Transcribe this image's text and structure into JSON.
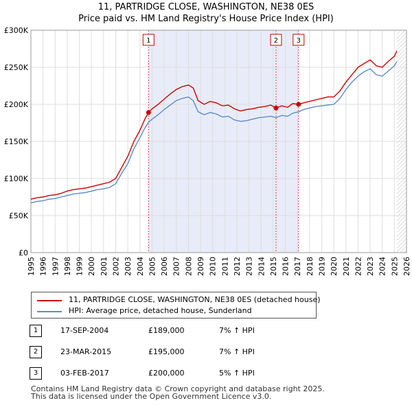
{
  "title_line1": "11, PARTRIDGE CLOSE, WASHINGTON, NE38 0ES",
  "title_line2": "Price paid vs. HM Land Registry's House Price Index (HPI)",
  "chart_data": {
    "type": "line",
    "title": "Price paid vs. HM Land Registry's House Price Index (HPI)",
    "xlim": [
      1995,
      2026
    ],
    "ylim": [
      0,
      300000
    ],
    "x_ticks": [
      "1995",
      "1996",
      "1997",
      "1998",
      "1999",
      "2000",
      "2001",
      "2002",
      "2003",
      "2004",
      "2005",
      "2006",
      "2007",
      "2008",
      "2009",
      "2010",
      "2011",
      "2012",
      "2013",
      "2014",
      "2015",
      "2016",
      "2017",
      "2018",
      "2019",
      "2020",
      "2021",
      "2022",
      "2023",
      "2024",
      "2025",
      "2026"
    ],
    "y_ticks": [
      {
        "value": 0,
        "label": "£0"
      },
      {
        "value": 50000,
        "label": "£50K"
      },
      {
        "value": 100000,
        "label": "£100K"
      },
      {
        "value": 150000,
        "label": "£150K"
      },
      {
        "value": 200000,
        "label": "£200K"
      },
      {
        "value": 250000,
        "label": "£250K"
      },
      {
        "value": 300000,
        "label": "£300K"
      }
    ],
    "grid": true,
    "shaded_period": [
      2004.71,
      2017.09
    ],
    "hatched_after": 2025.2,
    "series": [
      {
        "name": "11, PARTRIDGE CLOSE, WASHINGTON, NE38 0ES (detached house)",
        "color": "#cc0000",
        "points": [
          [
            1995.0,
            72000
          ],
          [
            1995.5,
            74000
          ],
          [
            1996.0,
            75000
          ],
          [
            1996.5,
            77000
          ],
          [
            1997.0,
            78000
          ],
          [
            1997.5,
            80000
          ],
          [
            1998.0,
            83000
          ],
          [
            1998.5,
            85000
          ],
          [
            1999.0,
            86000
          ],
          [
            1999.5,
            87000
          ],
          [
            2000.0,
            89000
          ],
          [
            2000.5,
            91000
          ],
          [
            2001.0,
            93000
          ],
          [
            2001.5,
            95000
          ],
          [
            2002.0,
            100000
          ],
          [
            2002.5,
            115000
          ],
          [
            2003.0,
            130000
          ],
          [
            2003.5,
            150000
          ],
          [
            2004.0,
            165000
          ],
          [
            2004.4,
            180000
          ],
          [
            2004.71,
            189000
          ],
          [
            2005.0,
            194000
          ],
          [
            2005.5,
            200000
          ],
          [
            2006.0,
            207000
          ],
          [
            2006.5,
            214000
          ],
          [
            2007.0,
            220000
          ],
          [
            2007.5,
            224000
          ],
          [
            2008.0,
            226000
          ],
          [
            2008.4,
            222000
          ],
          [
            2008.8,
            205000
          ],
          [
            2009.3,
            200000
          ],
          [
            2009.8,
            204000
          ],
          [
            2010.3,
            202000
          ],
          [
            2010.8,
            198000
          ],
          [
            2011.3,
            199000
          ],
          [
            2011.8,
            194000
          ],
          [
            2012.3,
            191000
          ],
          [
            2012.8,
            193000
          ],
          [
            2013.3,
            194000
          ],
          [
            2013.8,
            196000
          ],
          [
            2014.3,
            197000
          ],
          [
            2014.8,
            199000
          ],
          [
            2015.23,
            195000
          ],
          [
            2015.7,
            198000
          ],
          [
            2016.2,
            196000
          ],
          [
            2016.6,
            201000
          ],
          [
            2017.09,
            200000
          ],
          [
            2017.5,
            202000
          ],
          [
            2018.0,
            204000
          ],
          [
            2018.5,
            206000
          ],
          [
            2019.0,
            208000
          ],
          [
            2019.5,
            210000
          ],
          [
            2020.0,
            210000
          ],
          [
            2020.5,
            218000
          ],
          [
            2021.0,
            230000
          ],
          [
            2021.5,
            240000
          ],
          [
            2022.0,
            250000
          ],
          [
            2022.5,
            255000
          ],
          [
            2023.0,
            260000
          ],
          [
            2023.5,
            252000
          ],
          [
            2024.0,
            250000
          ],
          [
            2024.5,
            258000
          ],
          [
            2025.0,
            265000
          ],
          [
            2025.2,
            272000
          ]
        ]
      },
      {
        "name": "HPI: Average price, detached house, Sunderland",
        "color": "#5b8cc8",
        "points": [
          [
            1995.0,
            67000
          ],
          [
            1995.5,
            69000
          ],
          [
            1996.0,
            70000
          ],
          [
            1996.5,
            72000
          ],
          [
            1997.0,
            73000
          ],
          [
            1997.5,
            75000
          ],
          [
            1998.0,
            77000
          ],
          [
            1998.5,
            79000
          ],
          [
            1999.0,
            80000
          ],
          [
            1999.5,
            81000
          ],
          [
            2000.0,
            83000
          ],
          [
            2000.5,
            85000
          ],
          [
            2001.0,
            86000
          ],
          [
            2001.5,
            88000
          ],
          [
            2002.0,
            93000
          ],
          [
            2002.5,
            107000
          ],
          [
            2003.0,
            120000
          ],
          [
            2003.5,
            140000
          ],
          [
            2004.0,
            155000
          ],
          [
            2004.4,
            168000
          ],
          [
            2004.71,
            176000
          ],
          [
            2005.0,
            180000
          ],
          [
            2005.5,
            186000
          ],
          [
            2006.0,
            193000
          ],
          [
            2006.5,
            199000
          ],
          [
            2007.0,
            205000
          ],
          [
            2007.5,
            208000
          ],
          [
            2008.0,
            210000
          ],
          [
            2008.4,
            205000
          ],
          [
            2008.8,
            190000
          ],
          [
            2009.3,
            186000
          ],
          [
            2009.8,
            189000
          ],
          [
            2010.3,
            187000
          ],
          [
            2010.8,
            183000
          ],
          [
            2011.3,
            184000
          ],
          [
            2011.8,
            179000
          ],
          [
            2012.3,
            177000
          ],
          [
            2012.8,
            178000
          ],
          [
            2013.3,
            180000
          ],
          [
            2013.8,
            182000
          ],
          [
            2014.3,
            183000
          ],
          [
            2014.8,
            184000
          ],
          [
            2015.23,
            182000
          ],
          [
            2015.7,
            185000
          ],
          [
            2016.2,
            184000
          ],
          [
            2016.6,
            188000
          ],
          [
            2017.09,
            190000
          ],
          [
            2017.5,
            193000
          ],
          [
            2018.0,
            195000
          ],
          [
            2018.5,
            197000
          ],
          [
            2019.0,
            198000
          ],
          [
            2019.5,
            199000
          ],
          [
            2020.0,
            200000
          ],
          [
            2020.5,
            208000
          ],
          [
            2021.0,
            220000
          ],
          [
            2021.5,
            230000
          ],
          [
            2022.0,
            238000
          ],
          [
            2022.5,
            244000
          ],
          [
            2023.0,
            248000
          ],
          [
            2023.5,
            240000
          ],
          [
            2024.0,
            238000
          ],
          [
            2024.5,
            245000
          ],
          [
            2025.0,
            252000
          ],
          [
            2025.2,
            258000
          ]
        ]
      }
    ],
    "sales": [
      {
        "label": "1",
        "x": 2004.71,
        "price": 189000
      },
      {
        "label": "2",
        "x": 2015.23,
        "price": 195000
      },
      {
        "label": "3",
        "x": 2017.09,
        "price": 200000
      }
    ]
  },
  "legend": {
    "property": "11, PARTRIDGE CLOSE, WASHINGTON, NE38 0ES (detached house)",
    "hpi": "HPI: Average price, detached house, Sunderland"
  },
  "sales_table": [
    {
      "num": "1",
      "date": "17-SEP-2004",
      "price": "£189,000",
      "hpi": "7% ↑ HPI"
    },
    {
      "num": "2",
      "date": "23-MAR-2015",
      "price": "£195,000",
      "hpi": "7% ↑ HPI"
    },
    {
      "num": "3",
      "date": "03-FEB-2017",
      "price": "£200,000",
      "hpi": "5% ↑ HPI"
    }
  ],
  "footer_line1": "Contains HM Land Registry data © Crown copyright and database right 2025.",
  "footer_line2": "This data is licensed under the Open Government Licence v3.0."
}
